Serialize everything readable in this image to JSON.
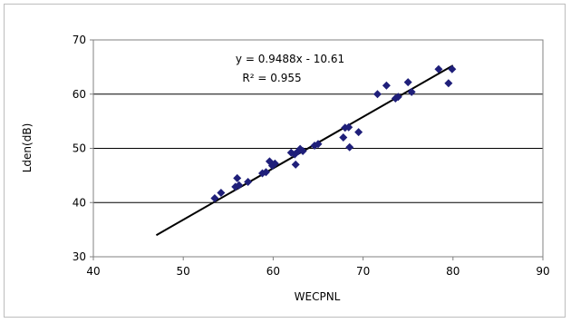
{
  "chart_data": {
    "type": "scatter",
    "xlabel": "WECPNL",
    "ylabel": "Lden(dB)",
    "xlim": [
      40,
      90
    ],
    "ylim": [
      30,
      70
    ],
    "xticks": [
      "40",
      "50",
      "60",
      "70",
      "80",
      "90"
    ],
    "yticks": [
      "30",
      "40",
      "50",
      "60",
      "70"
    ],
    "grid": "horizontal",
    "equation": "y = 0.9488x - 10.61",
    "r_squared": "R² = 0.955",
    "trendline": {
      "slope": 0.9488,
      "intercept": -10.61,
      "x_start": 47,
      "x_end": 80
    },
    "marker_color": "#1f1f7a",
    "points": [
      [
        53.5,
        40.8
      ],
      [
        54.2,
        41.8
      ],
      [
        55.8,
        42.9
      ],
      [
        56.2,
        43.2
      ],
      [
        56.0,
        44.5
      ],
      [
        57.2,
        43.8
      ],
      [
        58.8,
        45.4
      ],
      [
        59.2,
        45.6
      ],
      [
        59.6,
        47.6
      ],
      [
        59.9,
        46.8
      ],
      [
        60.2,
        47.2
      ],
      [
        62.0,
        49.2
      ],
      [
        62.4,
        48.9
      ],
      [
        62.5,
        47.0
      ],
      [
        62.8,
        49.5
      ],
      [
        63.0,
        49.9
      ],
      [
        63.3,
        49.5
      ],
      [
        64.6,
        50.5
      ],
      [
        65.0,
        50.8
      ],
      [
        67.8,
        52.0
      ],
      [
        68.0,
        53.8
      ],
      [
        68.4,
        53.9
      ],
      [
        68.5,
        50.2
      ],
      [
        69.5,
        53.0
      ],
      [
        71.6,
        60.0
      ],
      [
        72.6,
        61.6
      ],
      [
        73.6,
        59.2
      ],
      [
        73.9,
        59.5
      ],
      [
        75.0,
        62.2
      ],
      [
        75.4,
        60.4
      ],
      [
        78.4,
        64.6
      ],
      [
        79.5,
        62.0
      ],
      [
        79.9,
        64.6
      ]
    ]
  }
}
